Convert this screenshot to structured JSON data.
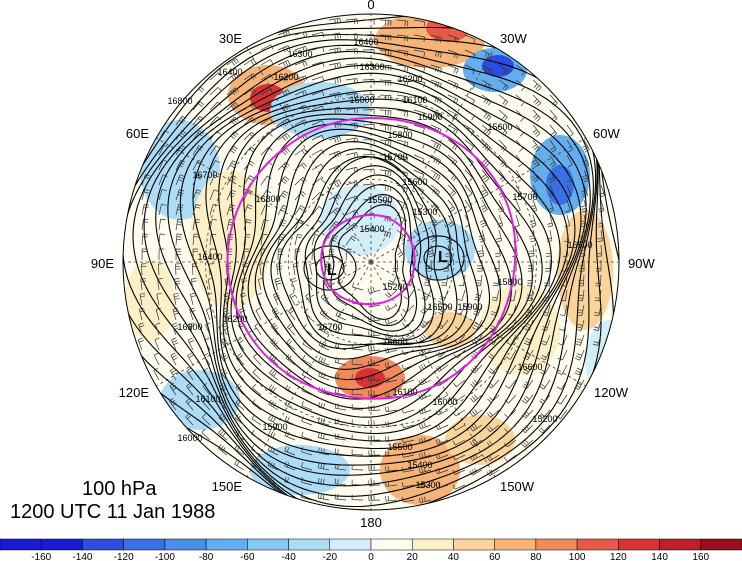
{
  "title": {
    "level": "100 hPa",
    "time": "1200 UTC 11 Jan 1988"
  },
  "longitude_labels": {
    "top": "0",
    "top_right": "30W",
    "upper_right": "60W",
    "right": "90W",
    "lower_right": "120W",
    "bottom_right": "150W",
    "bottom": "180",
    "bottom_left": "150E",
    "lower_left": "120E",
    "left": "90E",
    "upper_left": "60E",
    "top_left": "30E"
  },
  "lows": [
    {
      "name": "low-east",
      "label": "L"
    },
    {
      "name": "low-west",
      "label": "L"
    }
  ],
  "contour_labels": [
    "16400",
    "16300",
    "16200",
    "16100",
    "16000",
    "15900",
    "15800",
    "15700",
    "15600",
    "15500",
    "15400",
    "15300",
    "15200",
    "16500",
    "16600",
    "16700",
    "16800"
  ],
  "colorbar": {
    "ticks": [
      "-160",
      "-140",
      "-120",
      "-100",
      "-80",
      "-60",
      "-40",
      "-20",
      "0",
      "20",
      "40",
      "60",
      "80",
      "100",
      "120",
      "140",
      "160"
    ],
    "colors": [
      "#1a1ad8",
      "#2b4de0",
      "#3a6fe6",
      "#4d8eea",
      "#63aeee",
      "#86c8f2",
      "#acdcf6",
      "#d1eef9",
      "#fefcec",
      "#fdefc6",
      "#fbd49b",
      "#f6b478",
      "#f08a5d",
      "#e75a47",
      "#d93236",
      "#c21d2a",
      "#9c0d1e"
    ]
  }
}
